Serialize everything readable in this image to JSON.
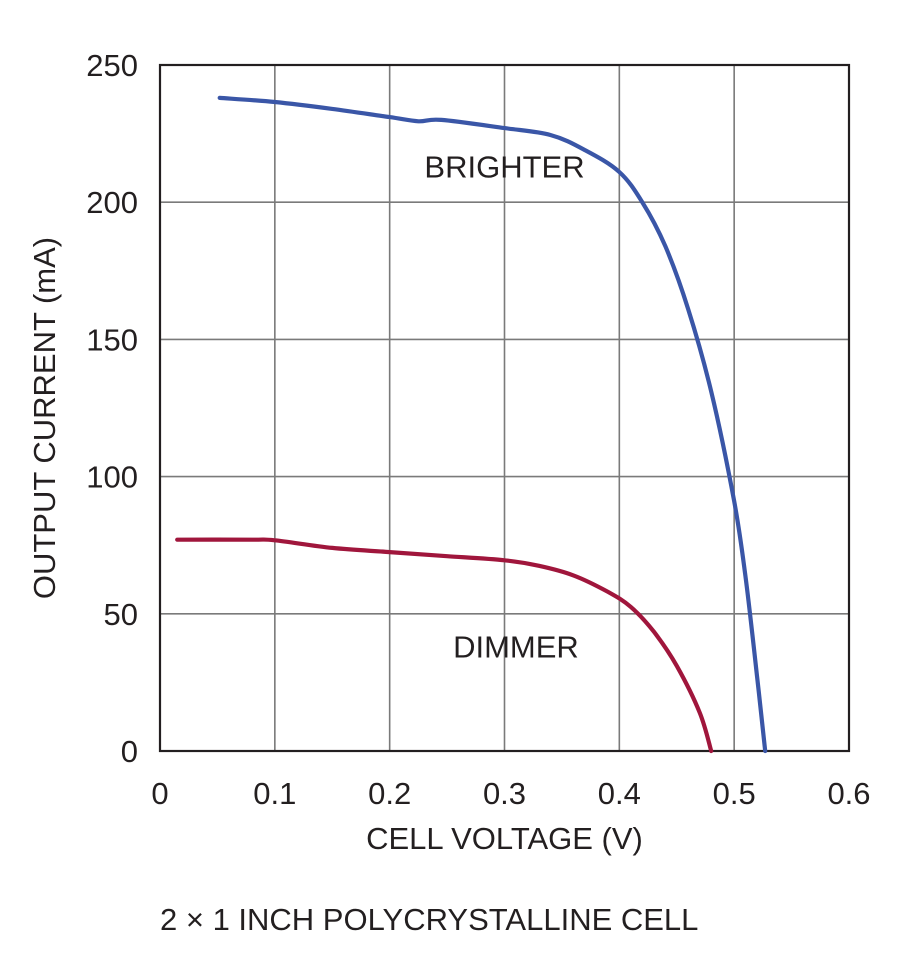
{
  "chart_data": {
    "type": "line",
    "title": "",
    "xlabel": "CELL VOLTAGE (V)",
    "ylabel": "OUTPUT CURRENT (mA)",
    "caption": "2 × 1 INCH POLYCRYSTALLINE CELL",
    "xlim": [
      0,
      0.6
    ],
    "ylim": [
      0,
      250
    ],
    "xticks": [
      0,
      0.1,
      0.2,
      0.3,
      0.4,
      0.5,
      0.6
    ],
    "xtick_labels": [
      "0",
      "0.1",
      "0.2",
      "0.3",
      "0.4",
      "0.5",
      "0.6"
    ],
    "yticks": [
      0,
      50,
      100,
      150,
      200,
      250
    ],
    "ytick_labels": [
      "0",
      "50",
      "100",
      "150",
      "200",
      "250"
    ],
    "grid": true,
    "legend": "none",
    "series": [
      {
        "name": "BRIGHTER",
        "color": "#3a56a7",
        "points": [
          [
            0.052,
            238
          ],
          [
            0.1,
            236.5
          ],
          [
            0.15,
            234
          ],
          [
            0.2,
            231
          ],
          [
            0.225,
            229.5
          ],
          [
            0.245,
            230
          ],
          [
            0.3,
            227
          ],
          [
            0.34,
            224.5
          ],
          [
            0.37,
            219
          ],
          [
            0.4,
            211
          ],
          [
            0.42,
            200
          ],
          [
            0.44,
            184
          ],
          [
            0.46,
            161
          ],
          [
            0.48,
            131
          ],
          [
            0.5,
            91
          ],
          [
            0.51,
            63
          ],
          [
            0.52,
            27
          ],
          [
            0.527,
            0
          ]
        ]
      },
      {
        "name": "DIMMER",
        "color": "#a0163c",
        "points": [
          [
            0.015,
            77
          ],
          [
            0.08,
            77
          ],
          [
            0.1,
            76.8
          ],
          [
            0.15,
            74
          ],
          [
            0.2,
            72.5
          ],
          [
            0.25,
            71
          ],
          [
            0.3,
            69.5
          ],
          [
            0.33,
            67.5
          ],
          [
            0.36,
            64
          ],
          [
            0.39,
            58
          ],
          [
            0.41,
            52.5
          ],
          [
            0.43,
            43.5
          ],
          [
            0.45,
            31
          ],
          [
            0.47,
            14
          ],
          [
            0.48,
            0
          ]
        ]
      }
    ],
    "annotations": [
      {
        "text": "BRIGHTER",
        "x": 0.3,
        "y": 213
      },
      {
        "text": "DIMMER",
        "x": 0.31,
        "y": 38
      }
    ]
  }
}
